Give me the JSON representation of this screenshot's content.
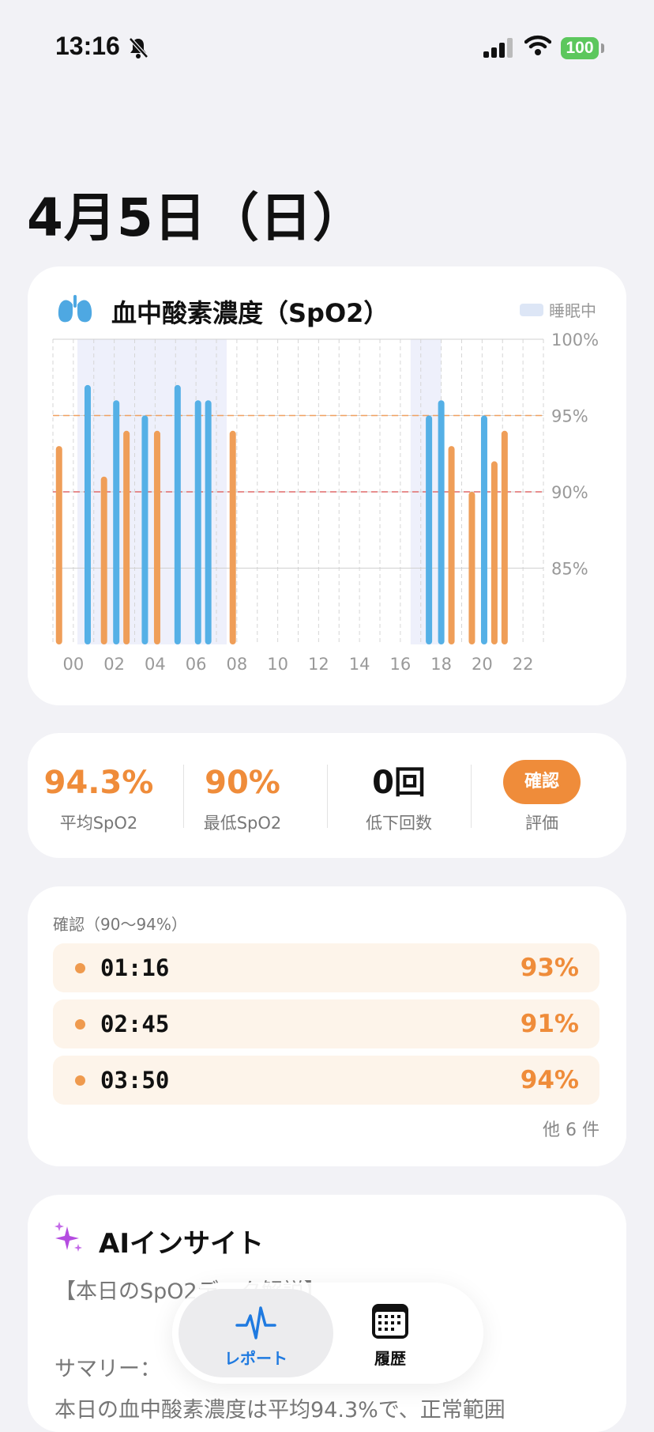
{
  "status": {
    "time": "13:16",
    "battery": "100"
  },
  "header": {
    "date": "4月5日（日）"
  },
  "chart_card": {
    "title": "血中酸素濃度（SpO2）",
    "legend": "睡眠中",
    "icon": "lungs-icon"
  },
  "chart_data": {
    "type": "bar",
    "x_ticks": [
      "00",
      "02",
      "04",
      "06",
      "08",
      "10",
      "12",
      "14",
      "16",
      "18",
      "20",
      "22"
    ],
    "y_ticks": [
      "100%",
      "95%",
      "90%",
      "85%"
    ],
    "ylim": [
      80,
      100
    ],
    "xlim": [
      0,
      24
    ],
    "reference_lines": [
      {
        "value": 95,
        "color": "#f0a060"
      },
      {
        "value": 90,
        "color": "#e06a6a"
      }
    ],
    "sleep_periods": [
      [
        1.2,
        8.5
      ],
      [
        17.5,
        19.0
      ]
    ],
    "series": [
      {
        "color": "#ef9e58",
        "points": [
          {
            "x": 0.3,
            "y": 93
          },
          {
            "x": 2.5,
            "y": 91
          },
          {
            "x": 3.6,
            "y": 94
          },
          {
            "x": 5.1,
            "y": 94
          },
          {
            "x": 8.8,
            "y": 94
          },
          {
            "x": 19.5,
            "y": 93
          },
          {
            "x": 20.5,
            "y": 90
          },
          {
            "x": 21.6,
            "y": 92
          },
          {
            "x": 22.1,
            "y": 94
          }
        ]
      },
      {
        "color": "#55b0e6",
        "points": [
          {
            "x": 1.7,
            "y": 97
          },
          {
            "x": 3.1,
            "y": 96
          },
          {
            "x": 4.5,
            "y": 95
          },
          {
            "x": 6.1,
            "y": 97
          },
          {
            "x": 7.1,
            "y": 96
          },
          {
            "x": 7.6,
            "y": 96
          },
          {
            "x": 18.4,
            "y": 95
          },
          {
            "x": 19.0,
            "y": 96
          },
          {
            "x": 21.1,
            "y": 95
          }
        ]
      }
    ]
  },
  "stats": {
    "avg_value": "94.3%",
    "avg_label": "平均SpO2",
    "min_value": "90%",
    "min_label": "最低SpO2",
    "drops_value": "0回",
    "drops_label": "低下回数",
    "eval_button": "確認",
    "eval_label": "評価"
  },
  "confirm_list": {
    "header": "確認（90〜94%）",
    "rows": [
      {
        "time": "01:16",
        "value": "93%"
      },
      {
        "time": "02:45",
        "value": "91%"
      },
      {
        "time": "03:50",
        "value": "94%"
      }
    ],
    "more": "他 6 件"
  },
  "ai": {
    "title": "AIインサイト",
    "line1": "【本日のSpO2データ解説】",
    "line2": "サマリー：",
    "line3": "本日の血中酸素濃度は平均94.3%で、正常範囲"
  },
  "tabbar": {
    "report": "レポート",
    "history": "履歴"
  },
  "colors": {
    "accent": "#ef8c3a",
    "blue": "#55b0e6",
    "tab_active": "#1f7ae0"
  }
}
